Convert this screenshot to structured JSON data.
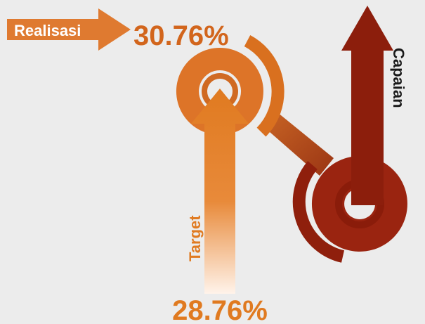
{
  "realisasi": {
    "label": "Realisasi",
    "value": "30.76%"
  },
  "target": {
    "label": "Target",
    "value": "28.76%"
  },
  "capaian": {
    "label": "Capaian"
  }
}
